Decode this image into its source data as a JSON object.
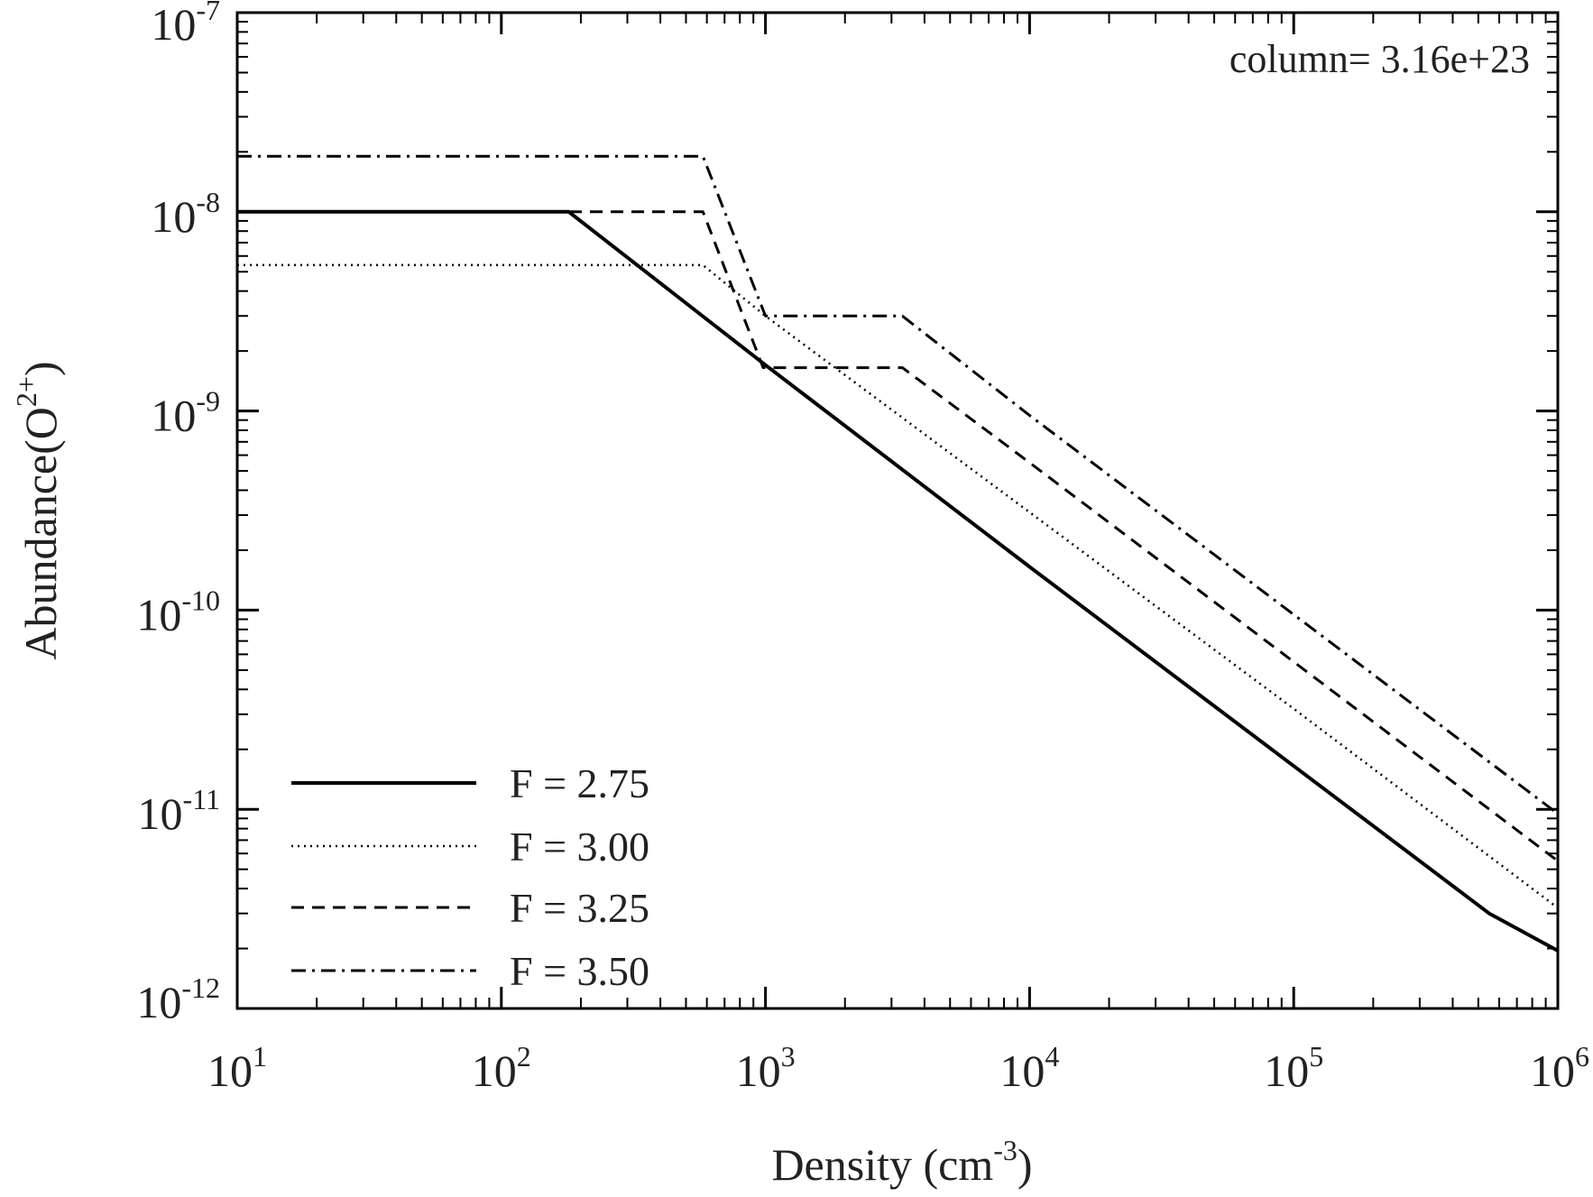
{
  "chart_data": {
    "type": "line",
    "x_scale": "log",
    "y_scale": "log",
    "xlim": [
      10,
      1000000
    ],
    "ylim": [
      1e-12,
      1e-07
    ],
    "xlabel": {
      "main": "Density (cm",
      "sup": "-3",
      "close": ")"
    },
    "ylabel": {
      "main": "Abundance(O",
      "sup": "2+",
      "close": ")"
    },
    "annotation": "column= 3.16e+23",
    "legend_position": "lower-left",
    "x_ticks": [
      {
        "value": 10,
        "base": "10",
        "exp": "1"
      },
      {
        "value": 100,
        "base": "10",
        "exp": "2"
      },
      {
        "value": 1000,
        "base": "10",
        "exp": "3"
      },
      {
        "value": 10000,
        "base": "10",
        "exp": "4"
      },
      {
        "value": 100000,
        "base": "10",
        "exp": "5"
      },
      {
        "value": 1000000,
        "base": "10",
        "exp": "6"
      }
    ],
    "y_ticks": [
      {
        "value": 1e-07,
        "base": "10",
        "exp": "-7"
      },
      {
        "value": 1e-08,
        "base": "10",
        "exp": "-8"
      },
      {
        "value": 1e-09,
        "base": "10",
        "exp": "-9"
      },
      {
        "value": 1e-10,
        "base": "10",
        "exp": "-10"
      },
      {
        "value": 1e-11,
        "base": "10",
        "exp": "-11"
      },
      {
        "value": 1e-12,
        "base": "10",
        "exp": "-12"
      }
    ],
    "series": [
      {
        "name": "F = 2.75",
        "style": "solid",
        "color": "#000000",
        "x": [
          10,
          180,
          1000,
          10000,
          100000,
          300000,
          550000,
          1000000
        ],
        "y": [
          1e-08,
          1e-08,
          1.7e-09,
          1.65e-10,
          1.65e-11,
          5.5e-12,
          3e-12,
          1.95e-12
        ]
      },
      {
        "name": "F = 3.00",
        "style": "dotted",
        "color": "#000000",
        "x": [
          10,
          580,
          1000,
          10000,
          100000,
          1000000
        ],
        "y": [
          5.4e-09,
          5.4e-09,
          3e-09,
          3.1e-10,
          3.2e-11,
          3.2e-12
        ]
      },
      {
        "name": "F = 3.25",
        "style": "dashed",
        "color": "#000000",
        "x": [
          10,
          580,
          980,
          3300,
          10000,
          100000,
          1000000
        ],
        "y": [
          1e-08,
          1e-08,
          1.65e-09,
          1.65e-09,
          5.5e-10,
          5.5e-11,
          5.5e-12
        ]
      },
      {
        "name": "F = 3.50",
        "style": "dashdot",
        "color": "#000000",
        "x": [
          10,
          580,
          1000,
          3300,
          10000,
          100000,
          1000000
        ],
        "y": [
          1.9e-08,
          1.9e-08,
          3e-09,
          3e-09,
          9.5e-10,
          9.5e-11,
          9.5e-12
        ]
      }
    ]
  }
}
